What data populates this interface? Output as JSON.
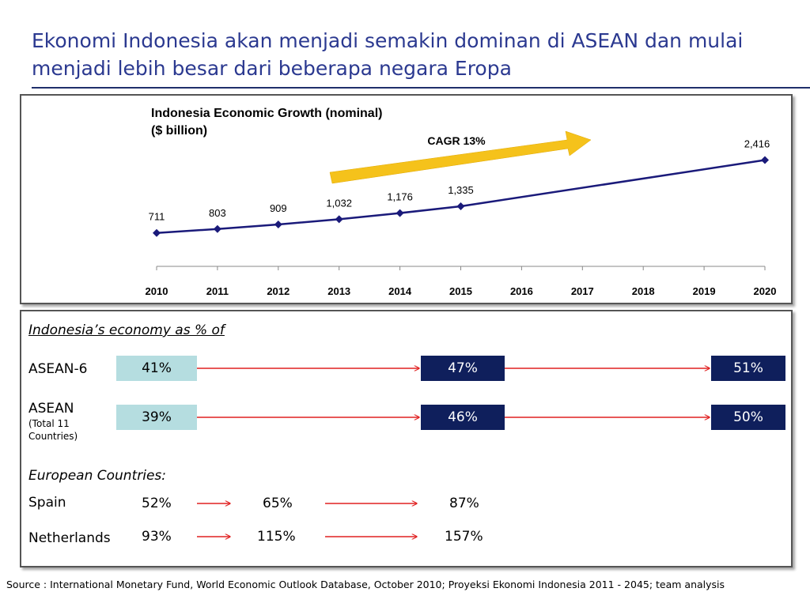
{
  "slide": {
    "title": "Ekonomi Indonesia akan menjadi semakin dominan di ASEAN dan mulai menjadi lebih besar dari beberapa negara Eropa",
    "source": "Source : International Monetary Fund, World Economic Outlook Database, October 2010; Proyeksi Ekonomi Indonesia 2011 - 2045; team analysis"
  },
  "chart_data": {
    "type": "line",
    "title": "Indonesia Economic Growth (nominal)",
    "subtitle": "($ billion)",
    "annotation": "CAGR 13%",
    "categories": [
      "2010",
      "2011",
      "2012",
      "2013",
      "2014",
      "2015",
      "2016",
      "2017",
      "2018",
      "2019",
      "2020"
    ],
    "series": [
      {
        "values": [
          711,
          803,
          909,
          1032,
          1176,
          1335,
          null,
          null,
          null,
          null,
          2416
        ],
        "labels": [
          "711",
          "803",
          "909",
          "1,032",
          "1,176",
          "1,335",
          "",
          "",
          "",
          "",
          "2,416"
        ]
      }
    ],
    "ylim": [
      0,
      2600
    ],
    "grid": false,
    "colors": {
      "line": "#1a1a7a",
      "arrow": "#f5c21b"
    }
  },
  "share": {
    "heading": "Indonesia’s economy as % of",
    "rows": [
      {
        "label": "ASEAN-6",
        "small": "",
        "values": [
          "41%",
          "47%",
          "51%"
        ]
      },
      {
        "label": "ASEAN",
        "small": "(Total 11 Countries)",
        "values": [
          "39%",
          "46%",
          "50%"
        ]
      }
    ],
    "colors": {
      "light": "#b5dde0",
      "dark": "#0f1f5c",
      "arrow": "#e02020"
    }
  },
  "europe": {
    "heading": "European Countries:",
    "rows": [
      {
        "label": "Spain",
        "values": [
          "52%",
          "65%",
          "87%"
        ]
      },
      {
        "label": "Netherlands",
        "values": [
          "93%",
          "115%",
          "157%"
        ]
      }
    ]
  }
}
